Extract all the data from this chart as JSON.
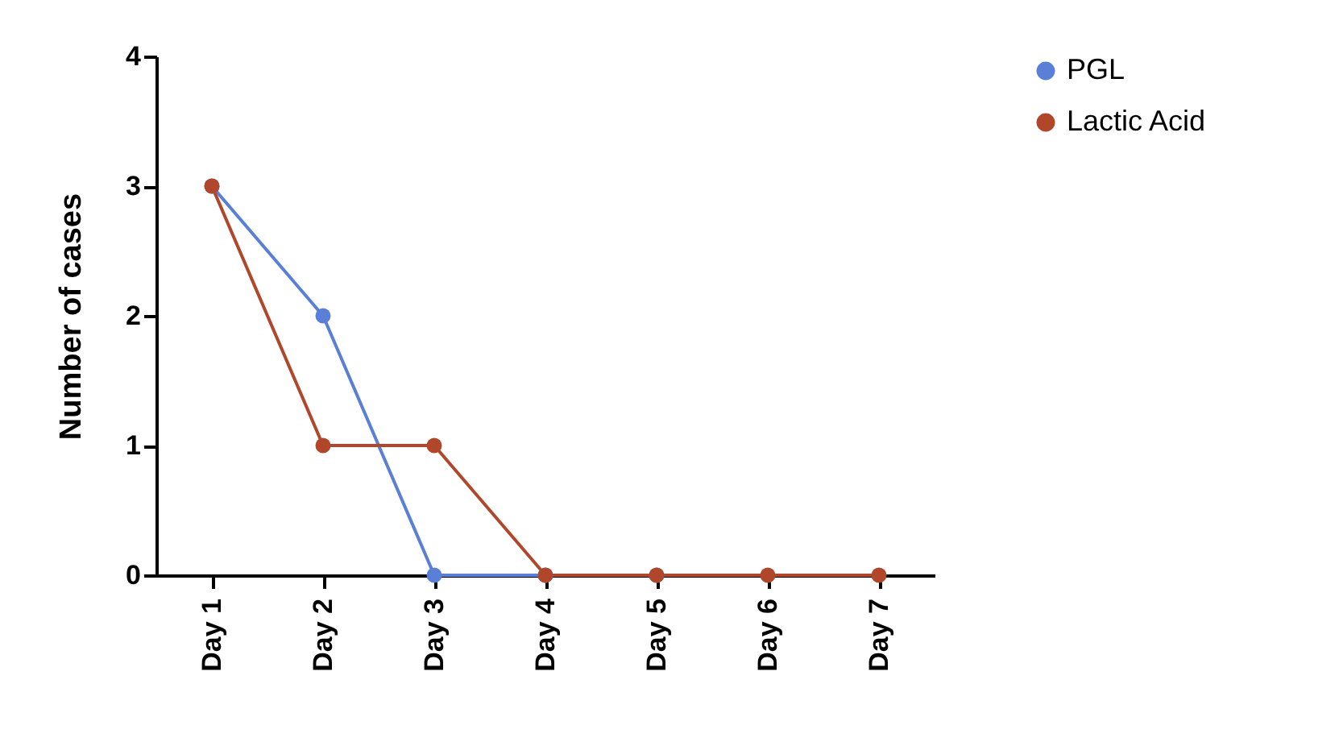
{
  "chart_data": {
    "type": "line",
    "ylabel": "Number of cases",
    "categories": [
      "Day 1",
      "Day 2",
      "Day 3",
      "Day 4",
      "Day 5",
      "Day 6",
      "Day 7"
    ],
    "series": [
      {
        "name": "PGL",
        "color": "#5a7fd6",
        "values": [
          3,
          2,
          0,
          0,
          0,
          null,
          null
        ]
      },
      {
        "name": "Lactic Acid",
        "color": "#b0472b",
        "values": [
          3,
          1,
          1,
          0,
          0,
          0,
          0
        ]
      }
    ],
    "ylim": [
      0,
      4
    ],
    "yticks": [
      0,
      1,
      2,
      3,
      4
    ],
    "marker": "circle",
    "legend": "top right"
  }
}
